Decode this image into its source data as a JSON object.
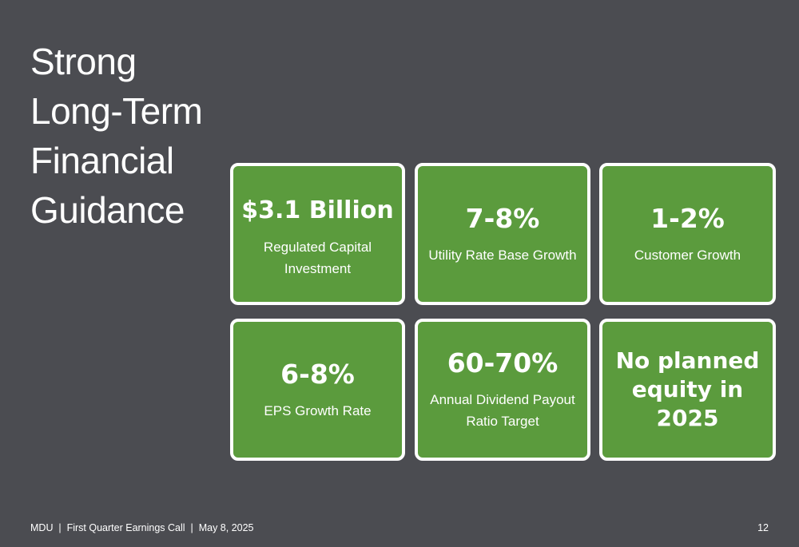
{
  "slide": {
    "title_lines": [
      "Strong",
      "Long-Term",
      "Financial",
      "Guidance"
    ],
    "cards": [
      {
        "value": "$3.1 Billion",
        "label": "Regulated Capital Investment"
      },
      {
        "value": "7-8%",
        "label": "Utility Rate Base Growth"
      },
      {
        "value": "1-2%",
        "label": "Customer Growth"
      },
      {
        "value": "6-8%",
        "label": "EPS Growth Rate"
      },
      {
        "value": "60-70%",
        "label": "Annual Dividend Payout Ratio Target"
      },
      {
        "value": "No planned equity in 2025",
        "label": ""
      }
    ],
    "footer": "MDU  |  First Quarter Earnings Call  |  May 8, 2025",
    "page_number": "12"
  },
  "colors": {
    "background": "#4b4c51",
    "card_fill": "#5b9b3d",
    "card_border": "#ffffff",
    "text": "#ffffff"
  }
}
